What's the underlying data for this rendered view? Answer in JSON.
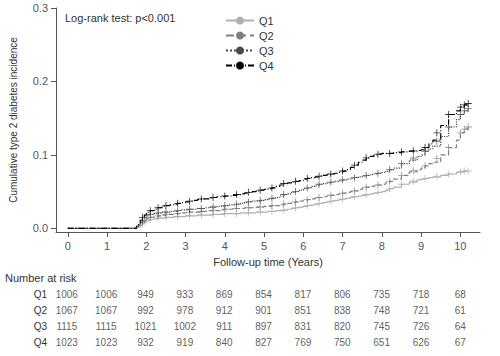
{
  "chart_data": {
    "type": "line",
    "annotation": "Log-rank test: p<0.001",
    "ylabel": "Cumulative type 2 diabetes incidence",
    "xlabel": "Follow-up time (Years)",
    "xlim": [
      -0.3,
      10.5
    ],
    "ylim": [
      -0.005,
      0.3
    ],
    "xticks": [
      0,
      1,
      2,
      3,
      4,
      5,
      6,
      7,
      8,
      9,
      10
    ],
    "yticks": [
      {
        "value": 0,
        "label": "0.0"
      },
      0.1,
      0.2,
      0.3
    ],
    "grid": false,
    "legend": "upper left",
    "x": [
      0,
      1.7,
      1.75,
      1.8,
      1.85,
      1.9,
      1.95,
      2.0,
      2.05,
      2.1,
      2.2,
      2.3,
      2.4,
      2.5,
      2.6,
      2.7,
      2.8,
      2.9,
      3.0,
      3.1,
      3.2,
      3.3,
      3.4,
      3.5,
      3.6,
      3.7,
      3.8,
      3.9,
      4.0,
      4.1,
      4.2,
      4.3,
      4.4,
      4.5,
      4.6,
      4.7,
      4.8,
      4.9,
      5.0,
      5.1,
      5.2,
      5.3,
      5.4,
      5.5,
      5.6,
      5.7,
      5.8,
      5.9,
      6.0,
      6.1,
      6.2,
      6.3,
      6.4,
      6.5,
      6.6,
      6.7,
      6.8,
      6.9,
      7.0,
      7.1,
      7.2,
      7.3,
      7.4,
      7.5,
      7.6,
      7.7,
      7.8,
      7.9,
      8.0,
      8.1,
      8.2,
      8.3,
      8.5,
      8.7,
      8.9,
      9.0,
      9.1,
      9.2,
      9.3,
      9.5,
      9.7,
      9.9,
      10.0,
      10.1,
      10.2
    ],
    "censor_x": [
      1.9,
      2.1,
      2.3,
      2.5,
      2.8,
      3.1,
      3.4,
      3.7,
      4.0,
      4.3,
      4.6,
      4.9,
      5.2,
      5.5,
      5.8,
      6.1,
      6.4,
      6.7,
      7.0,
      7.3,
      7.6,
      7.9,
      8.2,
      8.5,
      8.8,
      9.1,
      9.4,
      9.7,
      10.0,
      10.1,
      10.2
    ],
    "at_risk_label": "Number at risk",
    "at_risk_x": [
      0,
      1,
      2,
      3,
      4,
      5,
      6,
      7,
      8,
      9,
      10
    ],
    "series": [
      {
        "name": "Q1",
        "color": "#b0b0b0",
        "line_style": "solid",
        "marker": "+",
        "values": [
          0,
          0,
          0.001,
          0.002,
          0.004,
          0.006,
          0.008,
          0.01,
          0.011,
          0.012,
          0.013,
          0.014,
          0.014,
          0.015,
          0.015,
          0.016,
          0.016,
          0.016,
          0.017,
          0.017,
          0.017,
          0.018,
          0.018,
          0.018,
          0.018,
          0.019,
          0.019,
          0.019,
          0.02,
          0.02,
          0.02,
          0.02,
          0.021,
          0.021,
          0.021,
          0.021,
          0.022,
          0.022,
          0.022,
          0.023,
          0.023,
          0.024,
          0.024,
          0.025,
          0.026,
          0.027,
          0.028,
          0.029,
          0.03,
          0.031,
          0.032,
          0.033,
          0.034,
          0.035,
          0.036,
          0.037,
          0.038,
          0.039,
          0.04,
          0.041,
          0.042,
          0.043,
          0.044,
          0.045,
          0.046,
          0.047,
          0.048,
          0.049,
          0.05,
          0.052,
          0.054,
          0.056,
          0.06,
          0.063,
          0.066,
          0.067,
          0.068,
          0.069,
          0.07,
          0.072,
          0.074,
          0.076,
          0.077,
          0.078,
          0.078
        ],
        "censor_values": [
          0.006,
          0.012,
          0.014,
          0.015,
          0.016,
          0.017,
          0.018,
          0.019,
          0.02,
          0.02,
          0.021,
          0.022,
          0.023,
          0.025,
          0.028,
          0.031,
          0.034,
          0.037,
          0.04,
          0.043,
          0.046,
          0.049,
          0.054,
          0.06,
          0.0645,
          0.068,
          0.071,
          0.074,
          0.077,
          0.078,
          0.078
        ],
        "at_risk": [
          1006,
          1006,
          949,
          933,
          869,
          854,
          817,
          806,
          735,
          718,
          68
        ]
      },
      {
        "name": "Q2",
        "color": "#808080",
        "line_style": "dashed",
        "marker": "+",
        "values": [
          0,
          0,
          0.002,
          0.004,
          0.006,
          0.009,
          0.011,
          0.013,
          0.014,
          0.015,
          0.016,
          0.017,
          0.018,
          0.019,
          0.019,
          0.02,
          0.02,
          0.021,
          0.021,
          0.022,
          0.022,
          0.022,
          0.023,
          0.023,
          0.024,
          0.024,
          0.024,
          0.025,
          0.026,
          0.026,
          0.027,
          0.027,
          0.027,
          0.028,
          0.028,
          0.028,
          0.029,
          0.029,
          0.03,
          0.03,
          0.031,
          0.031,
          0.032,
          0.033,
          0.034,
          0.035,
          0.036,
          0.037,
          0.038,
          0.039,
          0.04,
          0.041,
          0.042,
          0.043,
          0.044,
          0.045,
          0.046,
          0.047,
          0.048,
          0.049,
          0.05,
          0.051,
          0.053,
          0.055,
          0.056,
          0.057,
          0.058,
          0.059,
          0.06,
          0.062,
          0.064,
          0.067,
          0.072,
          0.077,
          0.08,
          0.082,
          0.085,
          0.088,
          0.09,
          0.1,
          0.11,
          0.12,
          0.13,
          0.135,
          0.138
        ],
        "censor_values": [
          0.009,
          0.015,
          0.017,
          0.019,
          0.02,
          0.022,
          0.023,
          0.024,
          0.026,
          0.027,
          0.028,
          0.029,
          0.031,
          0.033,
          0.036,
          0.039,
          0.042,
          0.045,
          0.048,
          0.051,
          0.056,
          0.059,
          0.064,
          0.072,
          0.0785,
          0.085,
          0.095,
          0.11,
          0.13,
          0.135,
          0.138
        ],
        "at_risk": [
          1067,
          1067,
          992,
          978,
          912,
          901,
          851,
          838,
          748,
          721,
          61
        ]
      },
      {
        "name": "Q3",
        "color": "#484848",
        "line_style": "dotted",
        "marker": "+",
        "values": [
          0,
          0,
          0.002,
          0.005,
          0.008,
          0.011,
          0.014,
          0.017,
          0.018,
          0.019,
          0.02,
          0.021,
          0.022,
          0.022,
          0.023,
          0.023,
          0.024,
          0.025,
          0.025,
          0.026,
          0.026,
          0.027,
          0.027,
          0.028,
          0.029,
          0.029,
          0.03,
          0.03,
          0.031,
          0.032,
          0.032,
          0.033,
          0.034,
          0.035,
          0.036,
          0.037,
          0.037,
          0.038,
          0.039,
          0.04,
          0.041,
          0.042,
          0.044,
          0.046,
          0.047,
          0.049,
          0.05,
          0.052,
          0.054,
          0.055,
          0.057,
          0.058,
          0.06,
          0.061,
          0.062,
          0.063,
          0.064,
          0.065,
          0.066,
          0.067,
          0.068,
          0.069,
          0.07,
          0.071,
          0.072,
          0.073,
          0.074,
          0.075,
          0.076,
          0.078,
          0.08,
          0.082,
          0.088,
          0.093,
          0.098,
          0.1,
          0.105,
          0.108,
          0.112,
          0.125,
          0.138,
          0.148,
          0.155,
          0.16,
          0.163
        ],
        "censor_values": [
          0.011,
          0.019,
          0.021,
          0.022,
          0.024,
          0.026,
          0.027,
          0.029,
          0.031,
          0.033,
          0.036,
          0.038,
          0.041,
          0.046,
          0.05,
          0.055,
          0.06,
          0.063,
          0.066,
          0.069,
          0.072,
          0.075,
          0.08,
          0.088,
          0.0955,
          0.105,
          0.1185,
          0.138,
          0.155,
          0.16,
          0.163
        ],
        "at_risk": [
          1115,
          1115,
          1021,
          1002,
          911,
          897,
          831,
          820,
          745,
          726,
          64
        ]
      },
      {
        "name": "Q4",
        "color": "#000000",
        "line_style": "dashdot",
        "marker": "+",
        "values": [
          0,
          0,
          0.003,
          0.007,
          0.011,
          0.015,
          0.018,
          0.02,
          0.022,
          0.024,
          0.026,
          0.028,
          0.03,
          0.031,
          0.032,
          0.033,
          0.034,
          0.035,
          0.036,
          0.037,
          0.038,
          0.039,
          0.04,
          0.04,
          0.041,
          0.042,
          0.043,
          0.043,
          0.044,
          0.044,
          0.045,
          0.046,
          0.047,
          0.048,
          0.049,
          0.05,
          0.051,
          0.052,
          0.053,
          0.054,
          0.055,
          0.057,
          0.059,
          0.061,
          0.062,
          0.063,
          0.064,
          0.065,
          0.067,
          0.068,
          0.069,
          0.07,
          0.071,
          0.072,
          0.073,
          0.074,
          0.075,
          0.076,
          0.078,
          0.08,
          0.083,
          0.086,
          0.09,
          0.093,
          0.096,
          0.098,
          0.1,
          0.101,
          0.102,
          0.102,
          0.102,
          0.103,
          0.104,
          0.105,
          0.106,
          0.107,
          0.11,
          0.115,
          0.12,
          0.14,
          0.155,
          0.16,
          0.165,
          0.168,
          0.17
        ],
        "censor_values": [
          0.015,
          0.024,
          0.028,
          0.031,
          0.034,
          0.037,
          0.04,
          0.042,
          0.044,
          0.046,
          0.049,
          0.052,
          0.055,
          0.061,
          0.064,
          0.068,
          0.071,
          0.074,
          0.078,
          0.086,
          0.096,
          0.101,
          0.102,
          0.104,
          0.1055,
          0.11,
          0.13,
          0.155,
          0.165,
          0.168,
          0.17
        ],
        "at_risk": [
          1023,
          1023,
          932,
          919,
          840,
          827,
          769,
          750,
          651,
          626,
          67
        ]
      }
    ]
  }
}
